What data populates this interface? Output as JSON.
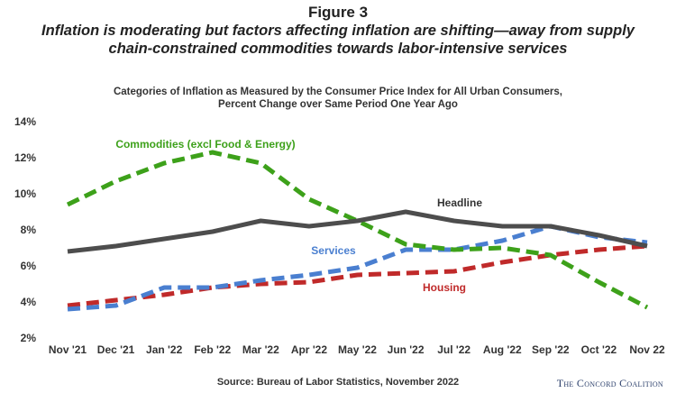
{
  "figure": {
    "label": "Figure 3",
    "title_line1": "Inflation is moderating but factors affecting inflation are shifting—away from supply",
    "title_line2": "chain-constrained commodities towards labor-intensive services"
  },
  "chart_data": {
    "type": "line",
    "title_line1": "Categories of Inflation as Measured by the Consumer Price Index for All Urban Consumers,",
    "title_line2": "Percent Change over Same Period One Year Ago",
    "xlabel": "",
    "ylabel": "",
    "categories": [
      "Nov '21",
      "Dec '21",
      "Jan '22",
      "Feb '22",
      "Mar '22",
      "Apr '22",
      "May '22",
      "Jun '22",
      "Jul '22",
      "Aug '22",
      "Sep '22",
      "Oct '22",
      "Nov 22"
    ],
    "ylim": [
      2,
      14
    ],
    "yticks": [
      "2%",
      "4%",
      "6%",
      "8%",
      "10%",
      "12%",
      "14%"
    ],
    "ytick_values": [
      2,
      4,
      6,
      8,
      10,
      12,
      14
    ],
    "grid": false,
    "legend": "inline labels",
    "series": [
      {
        "name": "Headline",
        "style": "solid",
        "color": "#4d4d4d",
        "values": [
          6.8,
          7.1,
          7.5,
          7.9,
          8.5,
          8.2,
          8.5,
          9.0,
          8.5,
          8.2,
          8.2,
          7.7,
          7.1
        ]
      },
      {
        "name": "Commodities (excl Food & Energy)",
        "style": "dashed",
        "color": "#3da11a",
        "values": [
          9.4,
          10.7,
          11.7,
          12.3,
          11.7,
          9.7,
          8.5,
          7.2,
          6.9,
          7.0,
          6.6,
          5.1,
          3.7
        ]
      },
      {
        "name": "Services",
        "style": "dashed",
        "color": "#4a7fd0",
        "values": [
          3.6,
          3.8,
          4.8,
          4.8,
          5.2,
          5.5,
          5.9,
          6.9,
          6.9,
          7.4,
          8.2,
          7.6,
          7.3
        ]
      },
      {
        "name": "Housing",
        "style": "dashed",
        "color": "#c02a2a",
        "values": [
          3.8,
          4.1,
          4.4,
          4.8,
          5.0,
          5.1,
          5.5,
          5.6,
          5.7,
          6.2,
          6.6,
          6.9,
          7.1
        ]
      }
    ]
  },
  "source": "Source: Bureau of Labor Statistics, November 2022",
  "brand": "The Concord Coalition"
}
